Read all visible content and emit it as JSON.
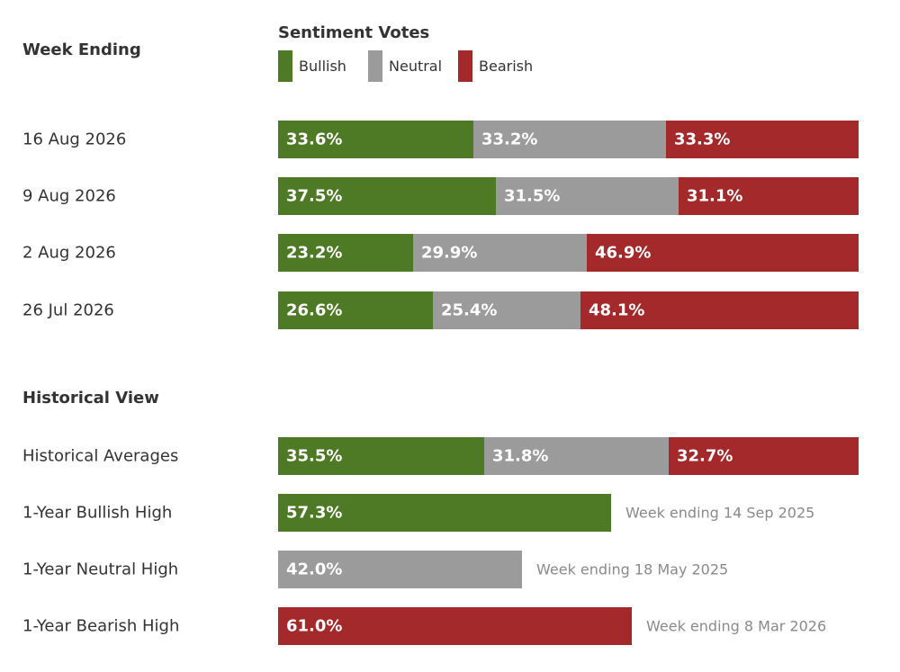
{
  "chart_data": {
    "type": "bar",
    "orientation": "horizontal",
    "stacked": true,
    "xlim": [
      0,
      100
    ],
    "legend_title": "Sentiment Votes",
    "legend_position": "top",
    "series_names": [
      "Bullish",
      "Neutral",
      "Bearish"
    ],
    "colors": {
      "Bullish": "#4e7a26",
      "Neutral": "#9b9b9b",
      "Bearish": "#a4292b"
    },
    "sections": [
      {
        "title": "Week Ending",
        "rows": [
          {
            "label": "16 Aug 2026",
            "values": [
              33.6,
              33.2,
              33.3
            ],
            "value_labels": [
              "33.6%",
              "33.2%",
              "33.3%"
            ]
          },
          {
            "label": "9 Aug 2026",
            "values": [
              37.5,
              31.5,
              31.1
            ],
            "value_labels": [
              "37.5%",
              "31.5%",
              "31.1%"
            ]
          },
          {
            "label": "2 Aug 2026",
            "values": [
              23.2,
              29.9,
              46.9
            ],
            "value_labels": [
              "23.2%",
              "29.9%",
              "46.9%"
            ]
          },
          {
            "label": "26 Jul 2026",
            "values": [
              26.6,
              25.4,
              48.1
            ],
            "value_labels": [
              "26.6%",
              "25.4%",
              "48.1%"
            ]
          }
        ]
      },
      {
        "title": "Historical View",
        "rows": [
          {
            "label": "Historical Averages",
            "values": [
              35.5,
              31.8,
              32.7
            ],
            "value_labels": [
              "35.5%",
              "31.8%",
              "32.7%"
            ]
          },
          {
            "label": "1-Year Bullish High",
            "series": "Bullish",
            "value": 57.3,
            "value_label": "57.3%",
            "note": "Week ending 14 Sep 2025"
          },
          {
            "label": "1-Year Neutral High",
            "series": "Neutral",
            "value": 42.0,
            "value_label": "42.0%",
            "note": "Week ending 18 May 2025"
          },
          {
            "label": "1-Year Bearish High",
            "series": "Bearish",
            "value": 61.0,
            "value_label": "61.0%",
            "note": "Week ending 8 Mar 2026"
          }
        ]
      }
    ]
  }
}
